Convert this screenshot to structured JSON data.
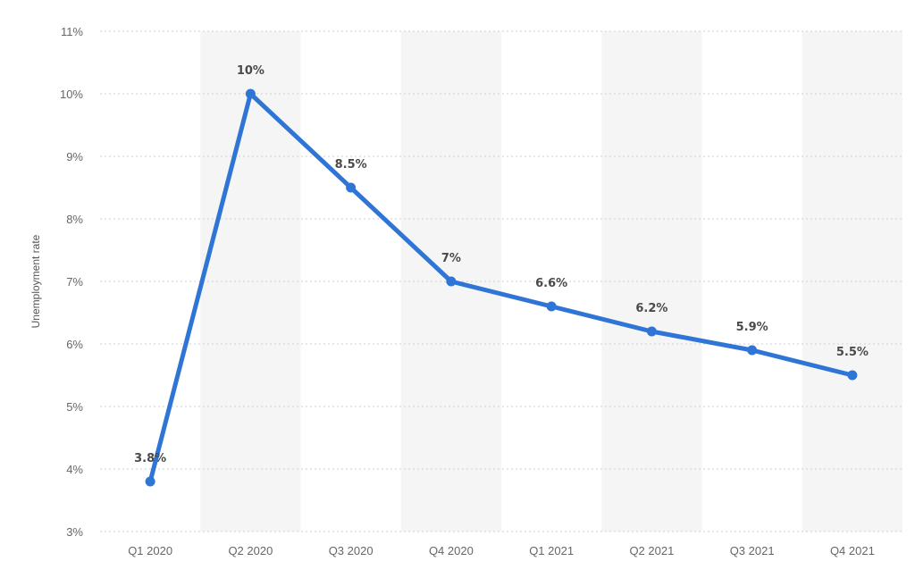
{
  "chart_data": {
    "type": "line",
    "title": "",
    "xlabel": "",
    "ylabel": "Unemployment rate",
    "categories": [
      "Q1 2020",
      "Q2 2020",
      "Q3 2020",
      "Q4 2020",
      "Q1 2021",
      "Q2 2021",
      "Q3 2021",
      "Q4 2021"
    ],
    "values": [
      3.8,
      10,
      8.5,
      7,
      6.6,
      6.2,
      5.9,
      5.5
    ],
    "data_labels": [
      "3.8%",
      "10%",
      "8.5%",
      "7%",
      "6.6%",
      "6.2%",
      "5.9%",
      "5.5%"
    ],
    "ylim": [
      3,
      11
    ],
    "yticks": [
      3,
      4,
      5,
      6,
      7,
      8,
      9,
      10,
      11
    ],
    "ytick_labels": [
      "3%",
      "4%",
      "5%",
      "6%",
      "7%",
      "8%",
      "9%",
      "10%",
      "11%"
    ],
    "grid": true,
    "legend": "none",
    "colors": {
      "line": "#2f75d6",
      "band": "#f5f5f5",
      "grid": "#cfcfcf"
    }
  }
}
